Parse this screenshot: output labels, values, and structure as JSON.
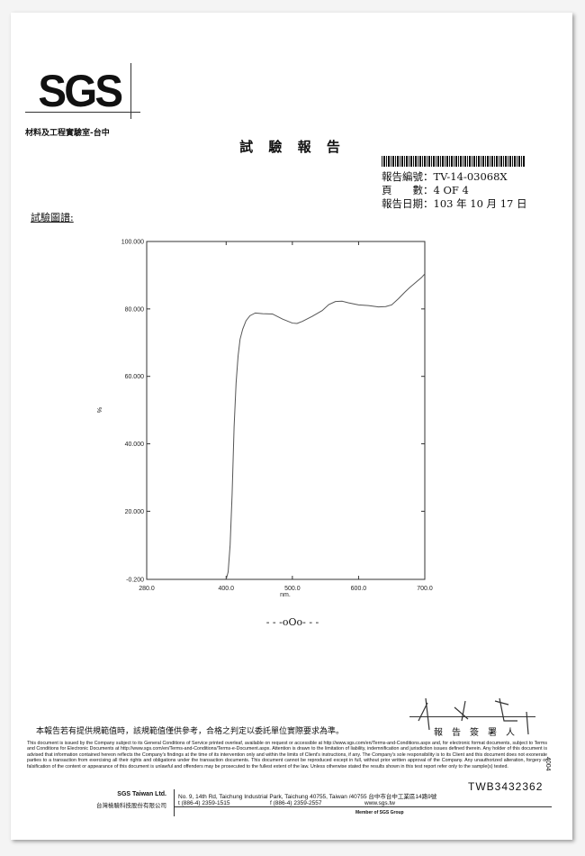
{
  "header": {
    "logo": "SGS",
    "lab_name": "材料及工程實驗室-台中",
    "title": "試 驗 報 告",
    "report_no_label": "報告編號：",
    "report_no": "TV-14-03068X",
    "pages_label": "頁　　數：",
    "pages": "4 OF 4",
    "date_label": "報告日期：",
    "date": "103 年 10 月 17 日"
  },
  "chart_heading": "試驗圖譜:",
  "chart_data": {
    "type": "line",
    "xlabel": "nm.",
    "ylabel": "%",
    "xlim": [
      280,
      700
    ],
    "ylim": [
      -0.2,
      100
    ],
    "x_ticks": [
      "280.0",
      "400.0",
      "500.0",
      "600.0",
      "700.0"
    ],
    "x_tick_values": [
      280,
      400,
      500,
      600,
      700
    ],
    "y_ticks": [
      "-0.200",
      "20.000",
      "40.000",
      "60.000",
      "80.000",
      "100.000"
    ],
    "y_tick_values": [
      -0.2,
      20,
      40,
      60,
      80,
      100
    ],
    "grid": false,
    "series": [
      {
        "x": [
          400,
          403,
          406,
          409,
          412,
          415,
          418,
          421,
          425,
          430,
          436,
          444,
          455,
          470,
          485,
          500,
          507,
          515,
          530,
          545,
          555,
          565,
          575,
          585,
          600,
          615,
          630,
          641,
          650,
          660,
          670,
          677,
          686,
          695,
          700
        ],
        "y": [
          -0.2,
          2,
          10,
          25,
          45,
          58,
          66,
          71,
          74,
          76.5,
          78,
          78.8,
          78.6,
          78.5,
          77,
          75.8,
          75.7,
          76.3,
          77.8,
          79.5,
          81.3,
          82.2,
          82.3,
          81.8,
          81.2,
          81,
          80.6,
          80.7,
          81.2,
          83,
          85,
          86.3,
          87.8,
          89.3,
          90.4
        ]
      }
    ]
  },
  "end_mark": "- - -oOo- - -",
  "footer": {
    "notice": "本報告若有提供規範值時，該規範值僅供參考，合格之判定以委託單位實際要求為準。",
    "signer_label": "報告簽署人",
    "disclaimer": "This document is issued by the Company subject to its General Conditions of Service printed overleaf, available on request or accessible at http://www.sgs.com/en/Terms-and-Conditions.aspx and, for electronic format documents, subject to Terms and Conditions for Electronic Documents at http://www.sgs.com/en/Terms-and-Conditions/Terms-e-Document.aspx. Attention is drawn to the limitation of liability, indemnification and jurisdiction issues defined therein. Any holder of this document is advised that information contained hereon reflects the Company's findings at the time of its intervention only and within the limits of Client's instructions, if any. The Company's sole responsibility is to its Client and this document does not exonerate parties to a transaction from exercising all their rights and obligations under the transaction documents. This document cannot be reproduced except in full, without prior written approval of the Company. Any unauthorized alteration, forgery or falsification of the content or appearance of this document is unlawful and offenders may be prosecuted to the fullest extent of the law. Unless otherwise stated the results shown in this test report refer only to the sample(s) tested.",
    "serial": "TWB3432362",
    "company_en": "SGS Taiwan Ltd.",
    "company_zh": "台灣檢驗科技股份有限公司",
    "address": "No. 9, 14th Rd, Taichung Industrial Park, Taichung 40755, Taiwan /40755 台中市台中工業區14路9號",
    "tel": "t (886-4) 2359-1515",
    "fax": "f (886-4) 2359-2557",
    "website": "www.sgs.tw",
    "member": "Member of SGS Group",
    "side_code": "4004"
  }
}
